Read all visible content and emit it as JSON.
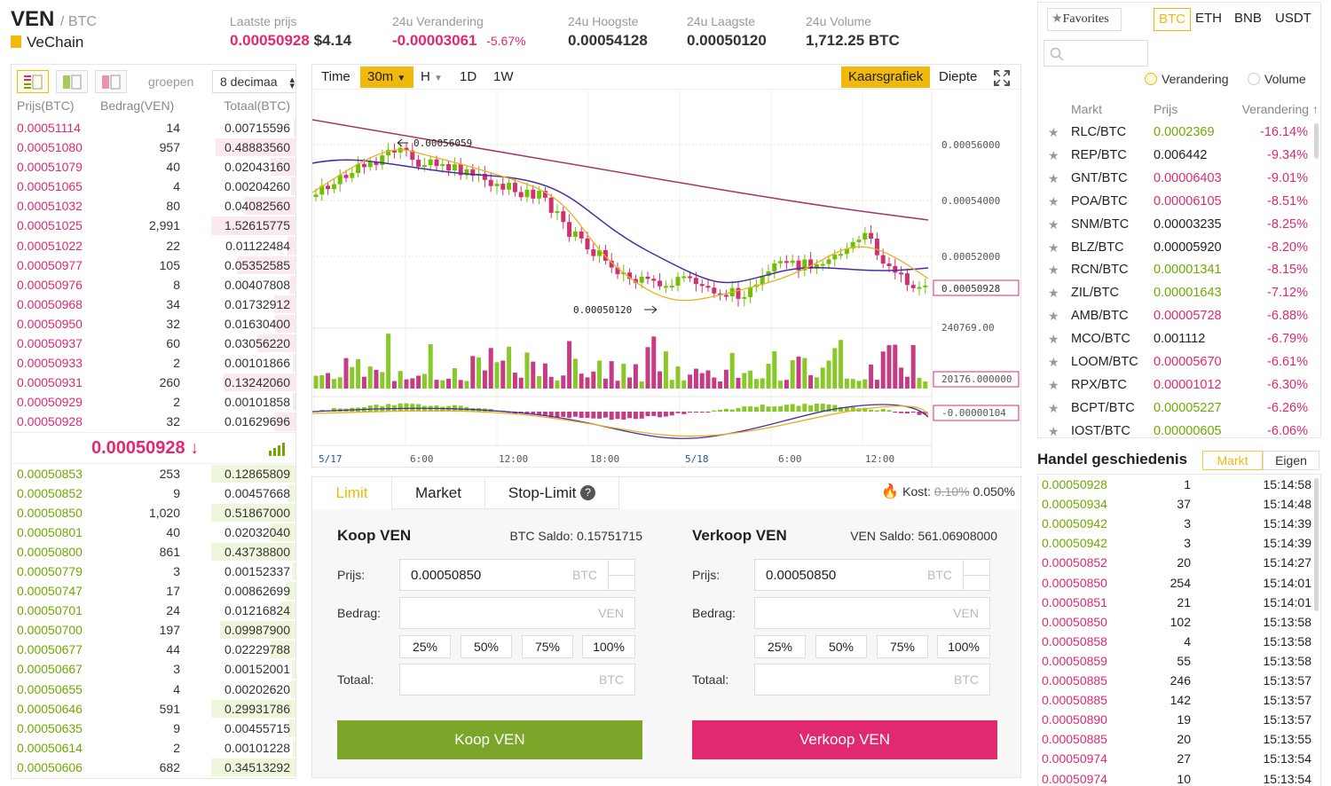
{
  "header": {
    "base": "VEN",
    "quote": "/ BTC",
    "coin_name": "VeChain",
    "last_price_label": "Laatste prijs",
    "last_price": "0.00050928",
    "last_price_usd": "$4.14",
    "change_label": "24u Verandering",
    "change": "-0.00003061",
    "change_pct": "-5.67%",
    "high_label": "24u Hoogste",
    "high": "0.00054128",
    "low_label": "24u Laagste",
    "low": "0.00050120",
    "volume_label": "24u Volume",
    "volume": "1,712.25 BTC"
  },
  "orderbook": {
    "group_label": "groepen",
    "decimals": "8 decimaa",
    "col_price": "Prijs(BTC)",
    "col_amount": "Bedrag(VEN)",
    "col_total": "Totaal(BTC)",
    "asks": [
      {
        "p": "0.00051114",
        "a": "14",
        "t": "0.00715596",
        "d": 0.02
      },
      {
        "p": "0.00051080",
        "a": "957",
        "t": "0.48883560",
        "d": 0.95
      },
      {
        "p": "0.00051079",
        "a": "40",
        "t": "0.02043160",
        "d": 0.3
      },
      {
        "p": "0.00051065",
        "a": "4",
        "t": "0.00204260",
        "d": 0.05
      },
      {
        "p": "0.00051032",
        "a": "80",
        "t": "0.04082560",
        "d": 0.6
      },
      {
        "p": "0.00051025",
        "a": "2,991",
        "t": "1.52615775",
        "d": 1.0
      },
      {
        "p": "0.00051022",
        "a": "22",
        "t": "0.01122484",
        "d": 0.1
      },
      {
        "p": "0.00050977",
        "a": "105",
        "t": "0.05352585",
        "d": 0.7
      },
      {
        "p": "0.00050976",
        "a": "8",
        "t": "0.00407808",
        "d": 0.06
      },
      {
        "p": "0.00050968",
        "a": "34",
        "t": "0.01732912",
        "d": 0.25
      },
      {
        "p": "0.00050950",
        "a": "32",
        "t": "0.01630400",
        "d": 0.24
      },
      {
        "p": "0.00050937",
        "a": "60",
        "t": "0.03056220",
        "d": 0.45
      },
      {
        "p": "0.00050933",
        "a": "2",
        "t": "0.00101866",
        "d": 0.03
      },
      {
        "p": "0.00050931",
        "a": "260",
        "t": "0.13242060",
        "d": 0.85
      },
      {
        "p": "0.00050929",
        "a": "2",
        "t": "0.00101858",
        "d": 0.03
      },
      {
        "p": "0.00050928",
        "a": "32",
        "t": "0.01629696",
        "d": 0.25
      }
    ],
    "mid_price": "0.00050928 ↓",
    "bids": [
      {
        "p": "0.00050853",
        "a": "253",
        "t": "0.12865809",
        "d": 1.0
      },
      {
        "p": "0.00050852",
        "a": "9",
        "t": "0.00457668",
        "d": 0.08
      },
      {
        "p": "0.00050850",
        "a": "1,020",
        "t": "0.51867000",
        "d": 1.0
      },
      {
        "p": "0.00050801",
        "a": "40",
        "t": "0.02032040",
        "d": 0.3
      },
      {
        "p": "0.00050800",
        "a": "861",
        "t": "0.43738800",
        "d": 1.0
      },
      {
        "p": "0.00050779",
        "a": "3",
        "t": "0.00152337",
        "d": 0.04
      },
      {
        "p": "0.00050747",
        "a": "17",
        "t": "0.00862699",
        "d": 0.12
      },
      {
        "p": "0.00050701",
        "a": "24",
        "t": "0.01216824",
        "d": 0.18
      },
      {
        "p": "0.00050700",
        "a": "197",
        "t": "0.09987900",
        "d": 0.9
      },
      {
        "p": "0.00050677",
        "a": "44",
        "t": "0.02229788",
        "d": 0.3
      },
      {
        "p": "0.00050667",
        "a": "3",
        "t": "0.00152001",
        "d": 0.04
      },
      {
        "p": "0.00050655",
        "a": "4",
        "t": "0.00202620",
        "d": 0.05
      },
      {
        "p": "0.00050646",
        "a": "591",
        "t": "0.29931786",
        "d": 1.0
      },
      {
        "p": "0.00050635",
        "a": "9",
        "t": "0.00455715",
        "d": 0.08
      },
      {
        "p": "0.00050614",
        "a": "2",
        "t": "0.00101228",
        "d": 0.03
      },
      {
        "p": "0.00050606",
        "a": "682",
        "t": "0.34513292",
        "d": 1.0
      }
    ]
  },
  "chart": {
    "intervals": [
      "Time",
      "30m",
      "H",
      "1D",
      "1W"
    ],
    "active_interval": "30m",
    "mode_candle": "Kaarsgrafiek",
    "mode_depth": "Diepte",
    "price_ticks": [
      "0.00056000",
      "0.00054000",
      "0.00052000"
    ],
    "current_price_tag": "0.00050928",
    "volume_tick": "240769.00",
    "volume_tag": "20176.000000",
    "macd_tag": "-0.00000104",
    "annot_high": "0.00056059",
    "annot_low": "0.00050120",
    "time_ticks": [
      "5/17",
      "6:00",
      "12:00",
      "18:00",
      "5/18",
      "6:00",
      "12:00"
    ]
  },
  "trade": {
    "tabs": [
      "Limit",
      "Market",
      "Stop-Limit"
    ],
    "fee_label": "Kost:",
    "fee_old": "0.10%",
    "fee_new": "0.050%",
    "buy": {
      "title": "Koop VEN",
      "balance": "BTC Saldo: 0.15751715",
      "price": "0.00050850",
      "button": "Koop VEN"
    },
    "sell": {
      "title": "Verkoop VEN",
      "balance": "VEN Saldo: 561.06908000",
      "price": "0.00050850",
      "button": "Verkoop VEN"
    },
    "price_label": "Prijs:",
    "amount_label": "Bedrag:",
    "total_label": "Totaal:",
    "unit_btc": "BTC",
    "unit_ven": "VEN",
    "pcts": [
      "25%",
      "50%",
      "75%",
      "100%"
    ]
  },
  "market": {
    "favorites": "Favorites",
    "currencies": [
      "BTC",
      "ETH",
      "BNB",
      "USDT"
    ],
    "radio_change": "Verandering",
    "radio_volume": "Volume",
    "col_market": "Markt",
    "col_price": "Prijs",
    "col_change": "Verandering ↑",
    "rows": [
      {
        "n": "RLC/BTC",
        "p": "0.0002369",
        "c": "-16.14%",
        "up": true
      },
      {
        "n": "REP/BTC",
        "p": "0.006442",
        "c": "-9.34%",
        "up": null
      },
      {
        "n": "GNT/BTC",
        "p": "0.00006403",
        "c": "-9.01%",
        "up": false
      },
      {
        "n": "POA/BTC",
        "p": "0.00006105",
        "c": "-8.51%",
        "up": false
      },
      {
        "n": "SNM/BTC",
        "p": "0.00003235",
        "c": "-8.25%",
        "up": null
      },
      {
        "n": "BLZ/BTC",
        "p": "0.00005920",
        "c": "-8.20%",
        "up": null
      },
      {
        "n": "RCN/BTC",
        "p": "0.00001341",
        "c": "-8.15%",
        "up": true
      },
      {
        "n": "ZIL/BTC",
        "p": "0.00001643",
        "c": "-7.12%",
        "up": true
      },
      {
        "n": "AMB/BTC",
        "p": "0.00005728",
        "c": "-6.88%",
        "up": false
      },
      {
        "n": "MCO/BTC",
        "p": "0.001112",
        "c": "-6.79%",
        "up": null
      },
      {
        "n": "LOOM/BTC",
        "p": "0.00005670",
        "c": "-6.61%",
        "up": false
      },
      {
        "n": "RPX/BTC",
        "p": "0.00001012",
        "c": "-6.30%",
        "up": false
      },
      {
        "n": "BCPT/BTC",
        "p": "0.00005227",
        "c": "-6.26%",
        "up": true
      },
      {
        "n": "IOST/BTC",
        "p": "0.00000605",
        "c": "-6.06%",
        "up": true
      }
    ]
  },
  "history": {
    "title": "Handel geschiedenis",
    "tab_market": "Markt",
    "tab_own": "Eigen",
    "rows": [
      {
        "p": "0.00050928",
        "a": "1",
        "t": "15:14:58",
        "up": true
      },
      {
        "p": "0.00050934",
        "a": "37",
        "t": "15:14:48",
        "up": true
      },
      {
        "p": "0.00050942",
        "a": "3",
        "t": "15:14:39",
        "up": true
      },
      {
        "p": "0.00050942",
        "a": "3",
        "t": "15:14:39",
        "up": true
      },
      {
        "p": "0.00050852",
        "a": "20",
        "t": "15:14:27",
        "up": false
      },
      {
        "p": "0.00050850",
        "a": "254",
        "t": "15:14:01",
        "up": false
      },
      {
        "p": "0.00050851",
        "a": "21",
        "t": "15:14:01",
        "up": false
      },
      {
        "p": "0.00050850",
        "a": "102",
        "t": "15:13:58",
        "up": false
      },
      {
        "p": "0.00050858",
        "a": "4",
        "t": "15:13:58",
        "up": false
      },
      {
        "p": "0.00050859",
        "a": "55",
        "t": "15:13:58",
        "up": false
      },
      {
        "p": "0.00050885",
        "a": "246",
        "t": "15:13:57",
        "up": false
      },
      {
        "p": "0.00050885",
        "a": "142",
        "t": "15:13:57",
        "up": false
      },
      {
        "p": "0.00050890",
        "a": "19",
        "t": "15:13:57",
        "up": false
      },
      {
        "p": "0.00050885",
        "a": "20",
        "t": "15:13:55",
        "up": false
      },
      {
        "p": "0.00050974",
        "a": "27",
        "t": "15:13:54",
        "up": false
      },
      {
        "p": "0.00050974",
        "a": "10",
        "t": "15:13:54",
        "up": false
      }
    ]
  },
  "colors": {
    "accent": "#f0b90b",
    "red": "#e0296f",
    "green": "#70a800",
    "buy_button": "#7ba62a",
    "sell_button": "#e0296f"
  },
  "icons": [
    "list-icon",
    "fullscreen-icon",
    "star-icon",
    "search-icon",
    "fire-icon",
    "help-icon"
  ]
}
